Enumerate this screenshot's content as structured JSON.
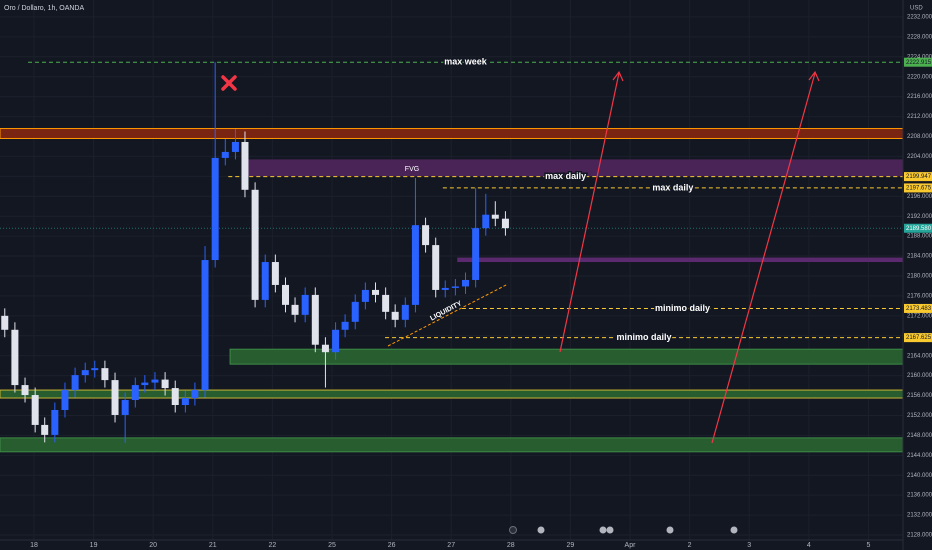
{
  "chart_data": {
    "type": "candlestick",
    "title": "Oro / Dollaro, 1h, OANDA",
    "currency": "USD",
    "x": [
      -0.49,
      -0.32,
      -0.15,
      0.02,
      0.18,
      0.35,
      0.52,
      0.69,
      0.86,
      1.02,
      1.19,
      1.36,
      1.53,
      1.7,
      1.86,
      2.03,
      2.2,
      2.37,
      2.54,
      2.7,
      2.87,
      3.04,
      3.21,
      3.38,
      3.54,
      3.71,
      3.88,
      4.05,
      4.22,
      4.38,
      4.55,
      4.72,
      4.89,
      5.06,
      5.22,
      5.39,
      5.56,
      5.73,
      5.9,
      6.06,
      6.23,
      6.4,
      6.57,
      6.74,
      6.9,
      7.07,
      7.24,
      7.41,
      7.58,
      7.74,
      7.91
    ],
    "open": [
      2172.0,
      2169.2,
      2158.1,
      2156.1,
      2150.1,
      2148.1,
      2153.1,
      2157.1,
      2160.1,
      2161.1,
      2161.5,
      2159.1,
      2152.1,
      2155.1,
      2158.1,
      2158.6,
      2159.2,
      2157.5,
      2154.1,
      2155.5,
      2157.1,
      2183.2,
      2203.7,
      2204.9,
      2206.9,
      2197.3,
      2175.2,
      2182.8,
      2178.2,
      2174.2,
      2172.2,
      2176.2,
      2166.2,
      2164.7,
      2169.2,
      2170.8,
      2174.8,
      2177.2,
      2176.2,
      2172.8,
      2171.2,
      2174.2,
      2190.2,
      2186.2,
      2177.2,
      2177.6,
      2177.9,
      2179.2,
      2189.6,
      2192.3,
      2191.5
    ],
    "high": [
      2173.5,
      2170.7,
      2159.6,
      2157.6,
      2151.6,
      2154.6,
      2158.6,
      2161.6,
      2162.6,
      2163.0,
      2163.0,
      2160.6,
      2156.6,
      2159.6,
      2160.1,
      2160.7,
      2160.7,
      2159.0,
      2157.0,
      2158.6,
      2186.0,
      2222.9,
      2207.5,
      2209.5,
      2209.0,
      2198.8,
      2184.3,
      2184.3,
      2179.7,
      2175.7,
      2177.7,
      2177.7,
      2167.7,
      2170.7,
      2172.3,
      2176.3,
      2178.7,
      2178.7,
      2177.7,
      2174.3,
      2175.7,
      2199.7,
      2191.7,
      2187.7,
      2179.1,
      2179.4,
      2180.7,
      2197.7,
      2196.5,
      2195.0,
      2193.0
    ],
    "low": [
      2167.7,
      2156.6,
      2154.6,
      2148.6,
      2146.6,
      2146.6,
      2151.6,
      2155.6,
      2158.6,
      2159.6,
      2157.6,
      2150.6,
      2146.5,
      2153.6,
      2156.6,
      2157.1,
      2156.0,
      2152.6,
      2152.6,
      2154.0,
      2155.6,
      2181.7,
      2202.2,
      2203.4,
      2195.8,
      2173.7,
      2173.7,
      2176.7,
      2172.7,
      2170.7,
      2170.7,
      2164.7,
      2157.6,
      2163.2,
      2167.7,
      2169.3,
      2173.3,
      2174.7,
      2171.3,
      2169.7,
      2169.7,
      2172.7,
      2184.7,
      2175.7,
      2175.7,
      2176.1,
      2176.4,
      2177.7,
      2188.1,
      2190.0,
      2188.1
    ],
    "close": [
      2169.2,
      2158.1,
      2156.1,
      2150.1,
      2148.1,
      2153.1,
      2157.1,
      2160.1,
      2161.1,
      2161.5,
      2159.1,
      2152.1,
      2155.1,
      2158.1,
      2158.6,
      2159.2,
      2157.5,
      2154.1,
      2155.5,
      2157.1,
      2183.2,
      2203.7,
      2204.9,
      2206.9,
      2197.3,
      2175.2,
      2182.8,
      2178.2,
      2174.2,
      2172.2,
      2176.2,
      2166.2,
      2164.7,
      2169.2,
      2170.8,
      2174.8,
      2177.2,
      2176.2,
      2172.8,
      2171.2,
      2174.2,
      2190.2,
      2186.2,
      2177.2,
      2177.6,
      2177.9,
      2179.2,
      2189.6,
      2192.3,
      2191.5,
      2189.6
    ],
    "up_color": "#2962ff",
    "down_color": "#e0e3eb",
    "xlim": [
      -0.57,
      14.58
    ],
    "xticks": [
      {
        "value": 0,
        "label": "18"
      },
      {
        "value": 1,
        "label": "19"
      },
      {
        "value": 2,
        "label": "20"
      },
      {
        "value": 3,
        "label": "21"
      },
      {
        "value": 4,
        "label": "22"
      },
      {
        "value": 5,
        "label": "25"
      },
      {
        "value": 6,
        "label": "26"
      },
      {
        "value": 7,
        "label": "27"
      },
      {
        "value": 8,
        "label": "28"
      },
      {
        "value": 9,
        "label": "29"
      },
      {
        "value": 10,
        "label": "Apr"
      },
      {
        "value": 11,
        "label": "2"
      },
      {
        "value": 12,
        "label": "3"
      },
      {
        "value": 13,
        "label": "4"
      },
      {
        "value": 14,
        "label": "5"
      }
    ],
    "ylim": [
      2127,
      2235.4
    ],
    "yticks": [
      {
        "value": 2128,
        "label": "2128.000"
      },
      {
        "value": 2132,
        "label": "2132.000"
      },
      {
        "value": 2136,
        "label": "2136.000"
      },
      {
        "value": 2140,
        "label": "2140.000"
      },
      {
        "value": 2144,
        "label": "2144.000"
      },
      {
        "value": 2148,
        "label": "2148.000"
      },
      {
        "value": 2152,
        "label": "2152.000"
      },
      {
        "value": 2156,
        "label": "2156.000"
      },
      {
        "value": 2160,
        "label": "2160.000"
      },
      {
        "value": 2164,
        "label": "2164.000"
      },
      {
        "value": 2168,
        "label": "2168.000"
      },
      {
        "value": 2172,
        "label": "2172.000"
      },
      {
        "value": 2176,
        "label": "2176.000"
      },
      {
        "value": 2180,
        "label": "2180.000"
      },
      {
        "value": 2184,
        "label": "2184.000"
      },
      {
        "value": 2188,
        "label": "2188.000"
      },
      {
        "value": 2192,
        "label": "2192.000"
      },
      {
        "value": 2196,
        "label": "2196.000"
      },
      {
        "value": 2200,
        "label": "2200.000"
      },
      {
        "value": 2204,
        "label": "2204.000"
      },
      {
        "value": 2208,
        "label": "2208.000"
      },
      {
        "value": 2212,
        "label": "2212.000"
      },
      {
        "value": 2216,
        "label": "2216.000"
      },
      {
        "value": 2220,
        "label": "2220.000"
      },
      {
        "value": 2224,
        "label": "2224.000"
      },
      {
        "value": 2228,
        "label": "2228.000"
      },
      {
        "value": 2232,
        "label": "2232.000"
      }
    ],
    "grid": true,
    "current_price": {
      "value": 2189.58,
      "label": "2189.580",
      "color": "#26a69a"
    },
    "levels": [
      {
        "value": 2222.915,
        "start": -0.1,
        "color": "#4caf50",
        "text": "max week"
      },
      {
        "value": 2199.947,
        "start": 3.26,
        "color": "#f9c930",
        "text": "max daily"
      },
      {
        "value": 2197.675,
        "start": 6.86,
        "color": "#f9c930",
        "text": "max daily"
      },
      {
        "value": 2173.483,
        "start": 7.18,
        "color": "#f9c930",
        "text": "minimo daily"
      },
      {
        "value": 2167.625,
        "start": 5.89,
        "color": "#f9c930",
        "text": "minimo daily"
      }
    ],
    "zones": [
      {
        "from": 2207.6,
        "to": 2209.6,
        "start": -0.57,
        "color": "#7a2412",
        "border": "#ff9800"
      },
      {
        "from": 2200.1,
        "to": 2203.3,
        "start": 3.54,
        "color": "#4a2457",
        "border": "#4a2457"
      },
      {
        "from": 2182.9,
        "to": 2183.6,
        "start": 7.11,
        "color": "#5b2a6e",
        "border": "#5b2a6e"
      },
      {
        "from": 2162.3,
        "to": 2165.3,
        "start": 3.29,
        "color": "#285d30",
        "border": "#3d8b47"
      },
      {
        "from": 2155.5,
        "to": 2157.1,
        "start": -0.57,
        "color": "#285d30",
        "border": "#c8b432"
      },
      {
        "from": 2144.7,
        "to": 2147.5,
        "start": -0.57,
        "color": "#285d30",
        "border": "#3d8b47"
      }
    ],
    "annotations": [
      "FVG",
      "LIQUIDITY"
    ]
  }
}
